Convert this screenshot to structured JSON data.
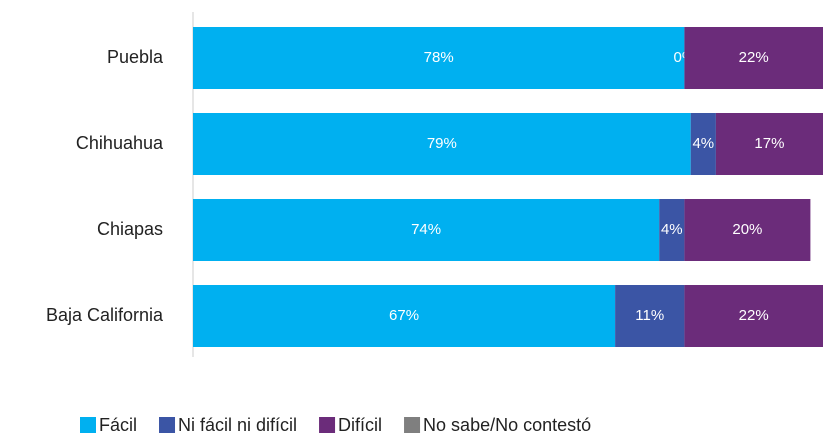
{
  "chart_data": {
    "type": "stacked-bar-horizontal",
    "categories": [
      "Puebla",
      "Chihuahua",
      "Chiapas",
      "Baja California"
    ],
    "series": [
      {
        "name": "Fácil",
        "color": "#00b0f0",
        "values": [
          78,
          79,
          74,
          67
        ],
        "value_labels": [
          "78%",
          "79%",
          "74%",
          "67%"
        ]
      },
      {
        "name": "Ni fácil ni difícil",
        "color": "#3b55a5",
        "values": [
          0,
          4,
          4,
          11
        ],
        "value_labels": [
          "0%",
          "4%",
          "4%",
          "11%"
        ]
      },
      {
        "name": "Difícil",
        "color": "#6b2c7a",
        "values": [
          22,
          17,
          20,
          22
        ],
        "value_labels": [
          "22%",
          "17%",
          "20%",
          "22%"
        ]
      },
      {
        "name": "No sabe/No contestó",
        "color": "#7f7f7f",
        "values": [
          0,
          0,
          0,
          0
        ]
      }
    ],
    "xlim": [
      0,
      100
    ],
    "legend": "bottom"
  }
}
